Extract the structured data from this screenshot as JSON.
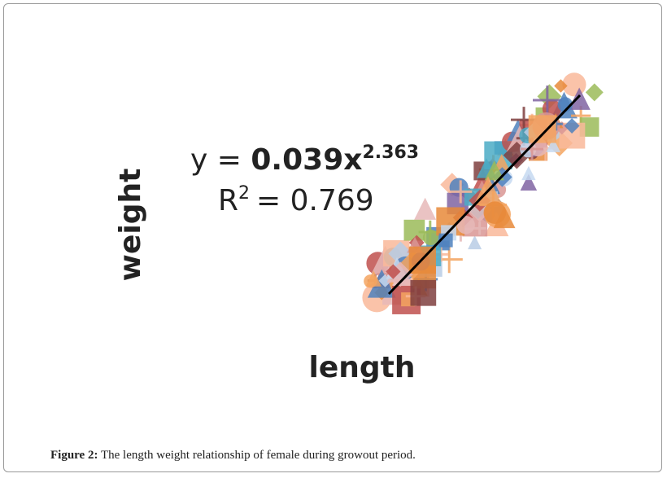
{
  "figure": {
    "equation": {
      "prefix": "y =",
      "coefficient": "0.039x",
      "exponent": "2.363"
    },
    "r_squared": {
      "symbol": "R",
      "exponent": "2",
      "value": "= 0.769"
    },
    "y_axis_label": "weight",
    "x_axis_label": "length"
  },
  "caption": {
    "label": "Figure 2:",
    "text": "The length weight relationship of female during growout period."
  }
}
